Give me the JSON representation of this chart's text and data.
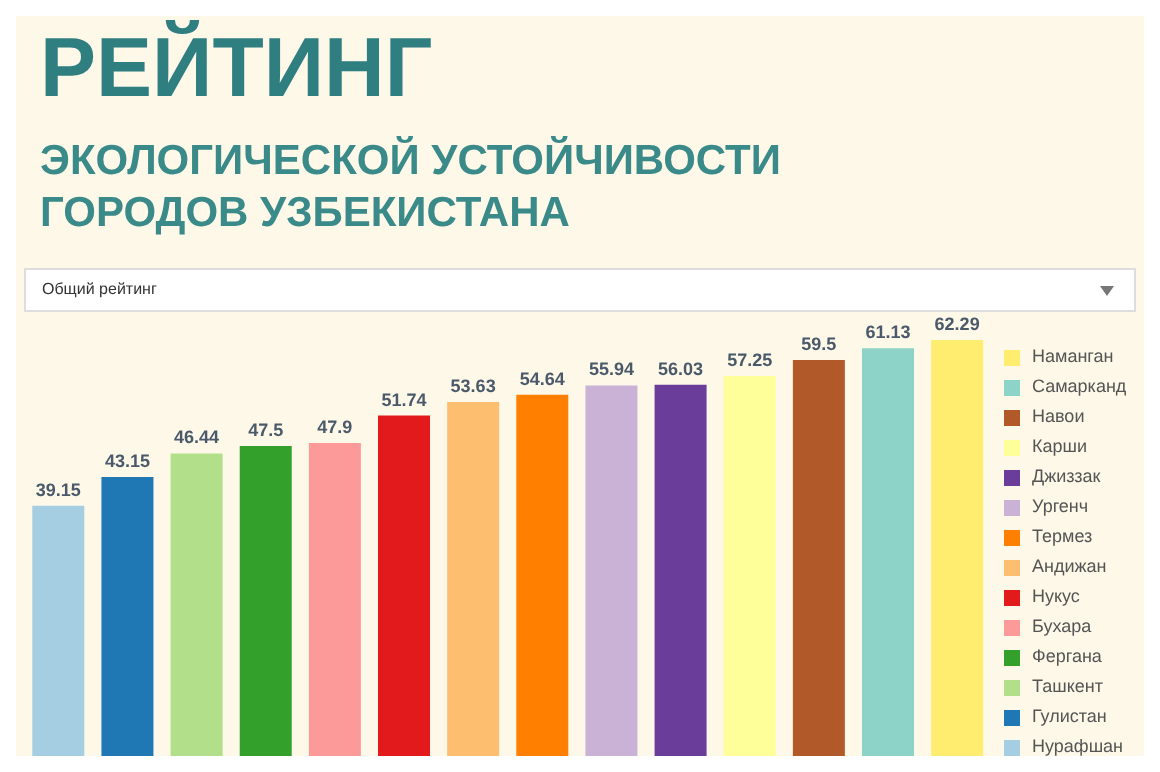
{
  "chart_data": {
    "type": "bar",
    "title": "РЕЙТИНГ",
    "subtitle": "ЭКОЛОГИЧЕСКОЙ УСТОЙЧИВОСТИ ГОРОДОВ УЗБЕКИСТАНА",
    "annotations": [
      "Общий рейтинг"
    ],
    "categories": [
      null,
      null,
      null,
      null,
      null,
      null,
      null,
      null,
      null,
      null,
      null,
      null,
      null,
      null
    ],
    "stacked": true,
    "data_labels": true,
    "legend": "right",
    "grid": false,
    "tick_labels": false,
    "series": [
      {
        "name": "Наманган",
        "color": "#ffed6f",
        "values": [
          null,
          null,
          null,
          null,
          null,
          null,
          null,
          null,
          null,
          null,
          null,
          null,
          null,
          62.29
        ]
      },
      {
        "name": "Самарканд",
        "color": "#8dd3c7",
        "values": [
          null,
          null,
          null,
          null,
          null,
          null,
          null,
          null,
          null,
          null,
          null,
          null,
          61.13,
          null
        ]
      },
      {
        "name": "Навои",
        "color": "#b15928",
        "values": [
          null,
          null,
          null,
          null,
          null,
          null,
          null,
          null,
          null,
          null,
          null,
          59.5,
          null,
          null
        ]
      },
      {
        "name": "Карши",
        "color": "#ffff99",
        "values": [
          null,
          null,
          null,
          null,
          null,
          null,
          null,
          null,
          null,
          null,
          57.25,
          null,
          null,
          null
        ]
      },
      {
        "name": "Джиззак",
        "color": "#6a3d9a",
        "values": [
          null,
          null,
          null,
          null,
          null,
          null,
          null,
          null,
          null,
          56.03,
          null,
          null,
          null,
          null
        ]
      },
      {
        "name": "Ургенч",
        "color": "#cab2d6",
        "values": [
          null,
          null,
          null,
          null,
          null,
          null,
          null,
          null,
          55.94,
          null,
          null,
          null,
          null,
          null
        ]
      },
      {
        "name": "Термез",
        "color": "#ff7f00",
        "values": [
          null,
          null,
          null,
          null,
          null,
          null,
          null,
          54.64,
          null,
          null,
          null,
          null,
          null,
          null
        ]
      },
      {
        "name": "Андижан",
        "color": "#fdbf6f",
        "values": [
          null,
          null,
          null,
          null,
          null,
          null,
          53.63,
          null,
          null,
          null,
          null,
          null,
          null,
          null
        ]
      },
      {
        "name": "Нукус",
        "color": "#e31a1c",
        "values": [
          null,
          null,
          null,
          null,
          null,
          51.74,
          null,
          null,
          null,
          null,
          null,
          null,
          null,
          null
        ]
      },
      {
        "name": "Бухара",
        "color": "#fb9a99",
        "values": [
          null,
          null,
          null,
          null,
          47.9,
          null,
          null,
          null,
          null,
          null,
          null,
          null,
          null,
          null
        ]
      },
      {
        "name": "Фергана",
        "color": "#33a02c",
        "values": [
          null,
          null,
          null,
          47.5,
          null,
          null,
          null,
          null,
          null,
          null,
          null,
          null,
          null,
          null
        ]
      },
      {
        "name": "Ташкент",
        "color": "#b2df8a",
        "values": [
          null,
          null,
          46.44,
          null,
          null,
          null,
          null,
          null,
          null,
          null,
          null,
          null,
          null,
          null
        ]
      },
      {
        "name": "Гулистан",
        "color": "#1f78b4",
        "values": [
          null,
          43.15,
          null,
          null,
          null,
          null,
          null,
          null,
          null,
          null,
          null,
          null,
          null,
          null
        ]
      },
      {
        "name": "Нурафшан",
        "color": "#a6cee3",
        "values": [
          39.15,
          null,
          null,
          null,
          null,
          null,
          null,
          null,
          null,
          null,
          null,
          null,
          null,
          null
        ]
      }
    ]
  }
}
